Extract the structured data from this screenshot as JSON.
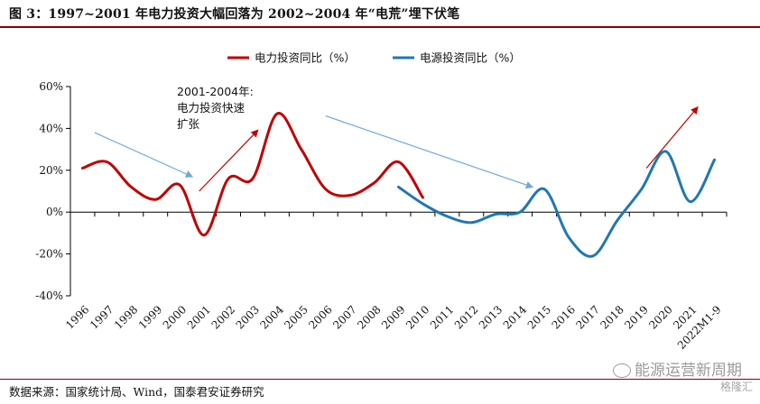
{
  "header": {
    "title": "图 3：1997~2001 年电力投资大幅回落为 2002~2004 年“电荒”埋下伏笔"
  },
  "footer": {
    "source": "数据来源：国家统计局、Wind，国泰君安证券研究",
    "watermark": "能源运营新周期",
    "watermark_sub": "格隆汇"
  },
  "colors": {
    "series_power": "#c00000",
    "series_source": "#1f77b4",
    "arrow_red": "#c00000",
    "arrow_blue": "#6fa8dc",
    "title_rule": "#8b0000"
  },
  "chart_data": {
    "type": "line",
    "title": "",
    "xlabel": "",
    "ylabel": "",
    "categories": [
      "1996",
      "1997",
      "1998",
      "1999",
      "2000",
      "2001",
      "2002",
      "2003",
      "2004",
      "2005",
      "2006",
      "2007",
      "2008",
      "2009",
      "2010",
      "2011",
      "2012",
      "2013",
      "2014",
      "2015",
      "2016",
      "2017",
      "2018",
      "2019",
      "2020",
      "2021",
      "2022M1-9"
    ],
    "ylim": [
      -40,
      60
    ],
    "yticks": [
      -40,
      -20,
      0,
      20,
      40,
      60
    ],
    "ytick_labels": [
      "-40%",
      "-20%",
      "0%",
      "20%",
      "40%",
      "60%"
    ],
    "legend_position": "top-center",
    "grid": false,
    "series": [
      {
        "name": "电力投资同比（%）",
        "color": "#c00000",
        "values": [
          21,
          24,
          12,
          6,
          13,
          -11,
          16,
          16,
          47,
          30,
          11,
          8,
          14,
          24,
          7,
          null,
          null,
          null,
          null,
          null,
          null,
          null,
          null,
          null,
          null,
          null,
          null
        ]
      },
      {
        "name": "电源投资同比（%）",
        "color": "#1f77b4",
        "values": [
          null,
          null,
          null,
          null,
          null,
          null,
          null,
          null,
          null,
          null,
          null,
          null,
          null,
          12,
          4,
          -2,
          -5,
          -1,
          0,
          11,
          -12,
          -21,
          -4,
          11,
          29,
          5,
          25
        ]
      }
    ],
    "annotations": [
      {
        "text_lines": [
          "2001-2004年:",
          "电力投资快速",
          "扩张"
        ]
      }
    ]
  }
}
